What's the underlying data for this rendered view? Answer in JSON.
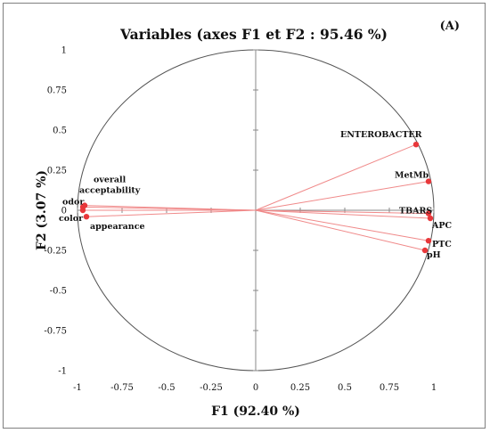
{
  "chart_data": {
    "type": "scatter",
    "subtype": "pca-correlation-circle",
    "title": "Variables (axes F1 et F2 : 95.46 %)",
    "panel_label": "(A)",
    "xlabel": "F1 (92.40 %)",
    "ylabel": "F2 (3.07 %)",
    "xlim": [
      -1,
      1
    ],
    "ylim": [
      -1,
      1
    ],
    "x_ticks": [
      "-1",
      "-0.75",
      "-0.5",
      "-0.25",
      "0",
      "0.25",
      "0.5",
      "0.75",
      "1"
    ],
    "y_ticks": [
      "1",
      "0.75",
      "0.5",
      "0.25",
      "0",
      "-0.25",
      "-0.5",
      "-0.75",
      "-1"
    ],
    "x_tick_values": [
      -1,
      -0.75,
      -0.5,
      -0.25,
      0,
      0.25,
      0.5,
      0.75,
      1
    ],
    "y_tick_values": [
      1,
      0.75,
      0.5,
      0.25,
      0,
      -0.25,
      -0.5,
      -0.75,
      -1
    ],
    "unit_circle": true,
    "grid": false,
    "point_color": "#e8373a",
    "line_color": "#f08a8a",
    "points": [
      {
        "name": "ENTEROBACTER",
        "x": 0.9,
        "y": 0.41
      },
      {
        "name": "MetMb",
        "x": 0.97,
        "y": 0.18
      },
      {
        "name": "TBARS",
        "x": 0.97,
        "y": -0.02
      },
      {
        "name": "APC",
        "x": 0.98,
        "y": -0.05
      },
      {
        "name": "PTC",
        "x": 0.97,
        "y": -0.19
      },
      {
        "name": "pH",
        "x": 0.95,
        "y": -0.25
      },
      {
        "name": "overall acceptability",
        "x": -0.96,
        "y": 0.03
      },
      {
        "name": "odor",
        "x": -0.97,
        "y": 0.02
      },
      {
        "name": "color",
        "x": -0.97,
        "y": 0.0
      },
      {
        "name": "appearance",
        "x": -0.95,
        "y": -0.04
      }
    ]
  }
}
